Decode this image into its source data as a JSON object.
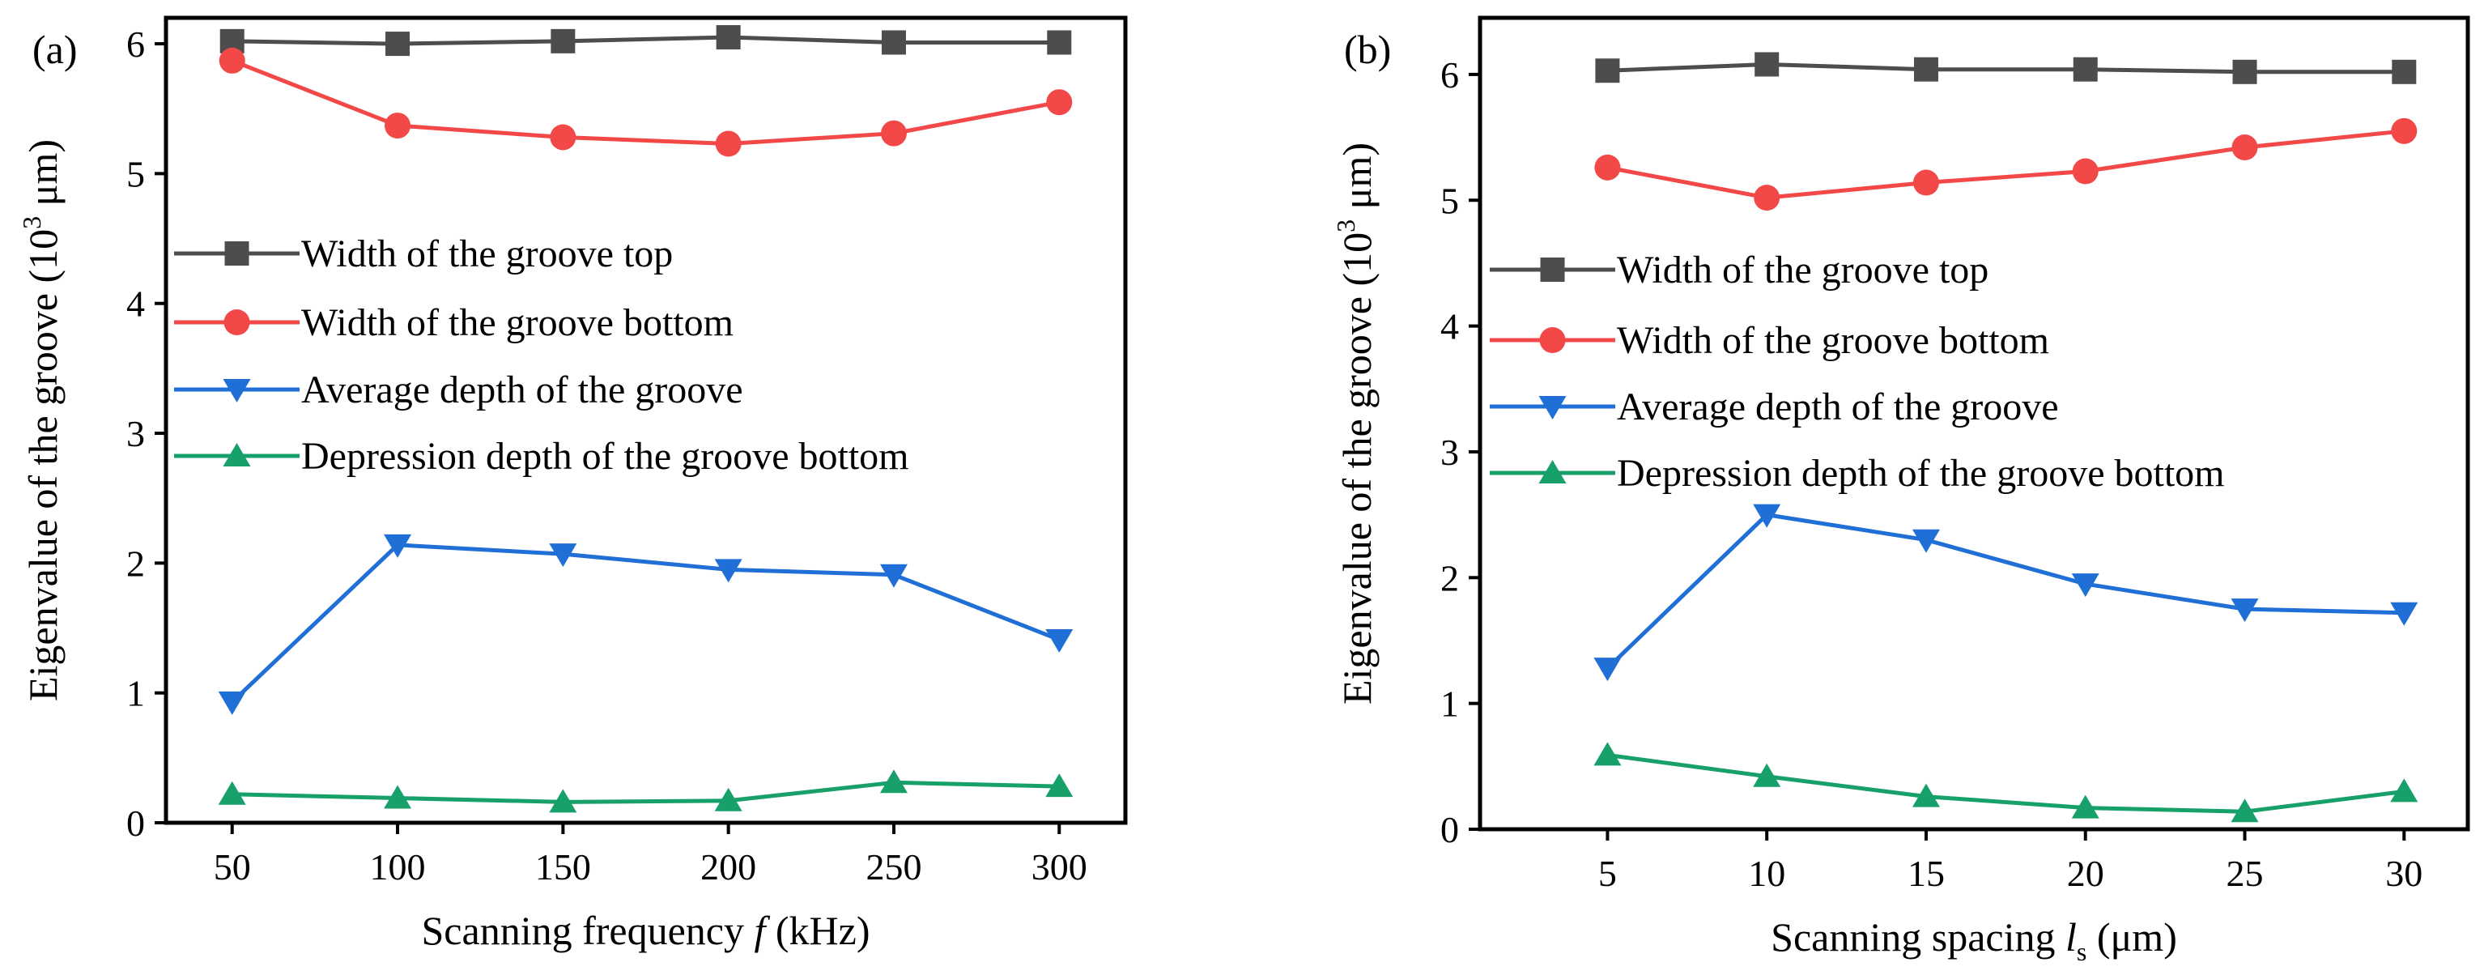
{
  "chart_data": [
    {
      "panel_label": "(a)",
      "type": "line",
      "xlabel_prefix": "Scanning frequency ",
      "xlabel_var": "f",
      "xlabel_suffix": " (kHz)",
      "ylabel_main": "Eigenvalue of the groove (10",
      "ylabel_exp": "3",
      "ylabel_end": " μm)",
      "x": [
        50,
        100,
        150,
        200,
        250,
        300
      ],
      "x_ticks": [
        "50",
        "100",
        "150",
        "200",
        "250",
        "300"
      ],
      "xlim": [
        30,
        320
      ],
      "ylim": [
        0,
        6.2
      ],
      "y_ticks": [
        "0",
        "1",
        "2",
        "3",
        "4",
        "5",
        "6"
      ],
      "series": [
        {
          "name": "Width of the groove top",
          "color": "#4d4d4d",
          "marker": "square",
          "values": [
            6.02,
            6.0,
            6.02,
            6.05,
            6.01,
            6.01
          ]
        },
        {
          "name": "Width of the groove bottom",
          "color": "#f24848",
          "marker": "circle",
          "values": [
            5.87,
            5.37,
            5.28,
            5.23,
            5.31,
            5.55
          ]
        },
        {
          "name": "Average depth of the groove",
          "color": "#1f6fd6",
          "marker": "triangle-down",
          "values": [
            0.93,
            2.14,
            2.07,
            1.95,
            1.91,
            1.41
          ]
        },
        {
          "name": "Depression depth of the groove bottom",
          "color": "#17a06a",
          "marker": "triangle-up",
          "values": [
            0.22,
            0.19,
            0.16,
            0.17,
            0.31,
            0.28
          ]
        }
      ]
    },
    {
      "panel_label": "(b)",
      "type": "line",
      "xlabel_prefix": "Scanning spacing ",
      "xlabel_var": "l",
      "xlabel_sub": "s",
      "xlabel_suffix": " (μm)",
      "ylabel_main": "Eigenvalue of the groove (10",
      "ylabel_exp": "3",
      "ylabel_end": " μm)",
      "x": [
        5,
        10,
        15,
        20,
        25,
        30
      ],
      "x_ticks": [
        "5",
        "10",
        "15",
        "20",
        "25",
        "30"
      ],
      "xlim": [
        1,
        32
      ],
      "ylim": [
        0,
        6.45
      ],
      "y_ticks": [
        "0",
        "1",
        "2",
        "3",
        "4",
        "5",
        "6"
      ],
      "series": [
        {
          "name": "Width of the groove top",
          "color": "#4d4d4d",
          "marker": "square",
          "values": [
            6.03,
            6.08,
            6.04,
            6.04,
            6.02,
            6.02
          ]
        },
        {
          "name": "Width of the groove bottom",
          "color": "#f24848",
          "marker": "circle",
          "values": [
            5.26,
            5.02,
            5.14,
            5.23,
            5.42,
            5.55
          ]
        },
        {
          "name": "Average depth of the groove",
          "color": "#1f6fd6",
          "marker": "triangle-down",
          "values": [
            1.28,
            2.5,
            2.3,
            1.95,
            1.75,
            1.72
          ]
        },
        {
          "name": "Depression depth of the groove bottom",
          "color": "#17a06a",
          "marker": "triangle-up",
          "values": [
            0.59,
            0.42,
            0.26,
            0.17,
            0.14,
            0.3
          ]
        }
      ]
    }
  ]
}
